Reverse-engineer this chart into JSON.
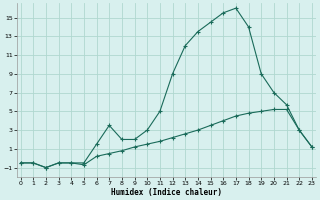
{
  "xlabel": "Humidex (Indice chaleur)",
  "x": [
    0,
    1,
    2,
    3,
    4,
    5,
    6,
    7,
    8,
    9,
    10,
    11,
    12,
    13,
    14,
    15,
    16,
    17,
    18,
    19,
    20,
    21,
    22,
    23
  ],
  "line1": [
    -0.5,
    -0.5,
    -1.0,
    -0.5,
    -0.5,
    -0.5,
    1.5,
    3.5,
    2.0,
    2.0,
    3.0,
    5.0,
    9.0,
    12.0,
    13.5,
    14.5,
    15.5,
    16.0,
    14.0,
    9.0,
    7.0,
    5.7,
    3.0,
    1.2
  ],
  "line2": [
    -0.5,
    -0.5,
    -1.0,
    -0.5,
    -0.5,
    -0.7,
    0.2,
    0.5,
    0.8,
    1.2,
    1.5,
    1.8,
    2.2,
    2.6,
    3.0,
    3.5,
    4.0,
    4.5,
    4.8,
    5.0,
    5.2,
    5.2,
    3.0,
    1.2
  ],
  "ylim": [
    -2,
    16.5
  ],
  "xlim": [
    -0.3,
    23.3
  ],
  "yticks": [
    -1,
    1,
    3,
    5,
    7,
    9,
    11,
    13,
    15
  ],
  "xticks": [
    0,
    1,
    2,
    3,
    4,
    5,
    6,
    7,
    8,
    9,
    10,
    11,
    12,
    13,
    14,
    15,
    16,
    17,
    18,
    19,
    20,
    21,
    22,
    23
  ],
  "line_color": "#1a6b5a",
  "bg_color": "#d8f0ee",
  "grid_color": "#b0d8d0",
  "marker": "+",
  "markersize": 3,
  "linewidth": 0.8
}
